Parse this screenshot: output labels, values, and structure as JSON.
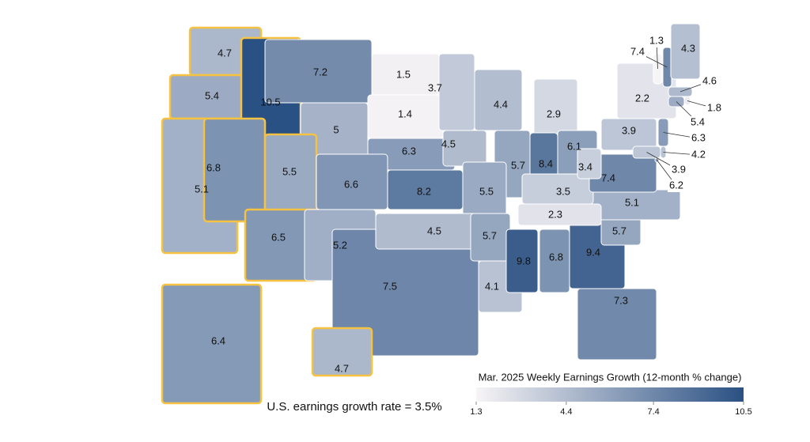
{
  "chart_data": {
    "type": "choropleth",
    "values": [
      4.7,
      5.4,
      10.5,
      7.2,
      5,
      1.5,
      1.4,
      3.7,
      4.4,
      2.9,
      6.3,
      4.5,
      5.7,
      8.4,
      6.1,
      5.1,
      6.8,
      5.5,
      6.6,
      8.2,
      5.5,
      6.5,
      5.2,
      7.5,
      4.5,
      5.7,
      4.1,
      9.8,
      6.8,
      9.4,
      7.3,
      5.7,
      5.1,
      2.3,
      3.5,
      7.4,
      3.4,
      3.9,
      2.2,
      1.3,
      7.4,
      4.3,
      4.6,
      1.8,
      5.4,
      6.3,
      4.2,
      3.9,
      6.2,
      6.4,
      4.7
    ],
    "annotation": "U.S. earnings growth rate = 3.5%",
    "colorbar": {
      "title": "Mar. 2025 Weekly Earnings Growth (12-month % change)",
      "lim": [
        1.3,
        10.5
      ],
      "ticks": [
        1.3,
        4.4,
        7.4,
        10.5
      ],
      "colors": [
        "#f7f4f6",
        "#2a5183"
      ]
    },
    "highlight_color": "#f5c242",
    "border_color": "#ffffff"
  }
}
